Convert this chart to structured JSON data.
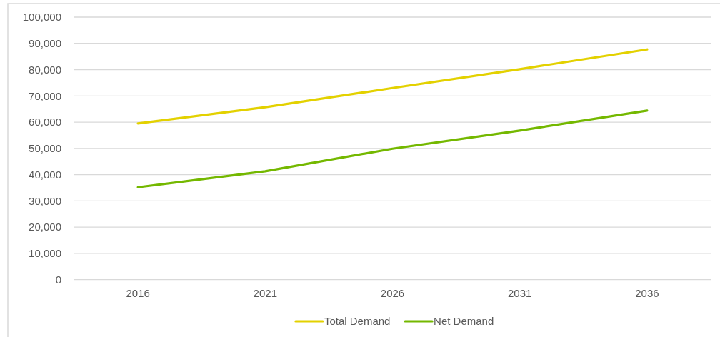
{
  "chart_data": {
    "type": "line",
    "categories": [
      "2016",
      "2021",
      "2026",
      "2031",
      "2036"
    ],
    "series": [
      {
        "name": "Total Demand",
        "color": "#e3d100",
        "values": [
          59500,
          65700,
          73000,
          80200,
          87700
        ]
      },
      {
        "name": "Net Demand",
        "color": "#74b800",
        "values": [
          35200,
          41300,
          49900,
          56800,
          64400
        ]
      }
    ],
    "ylim": [
      0,
      100000
    ],
    "yticks": [
      {
        "value": 0,
        "label": "0"
      },
      {
        "value": 10000,
        "label": "10,000"
      },
      {
        "value": 20000,
        "label": "20,000"
      },
      {
        "value": 30000,
        "label": "30,000"
      },
      {
        "value": 40000,
        "label": "40,000"
      },
      {
        "value": 50000,
        "label": "50,000"
      },
      {
        "value": 60000,
        "label": "60,000"
      },
      {
        "value": 70000,
        "label": "70,000"
      },
      {
        "value": 80000,
        "label": "80,000"
      },
      {
        "value": 90000,
        "label": "90,000"
      },
      {
        "value": 100000,
        "label": "100,000"
      }
    ],
    "grid": "y",
    "legend": "bottom",
    "marker": "none",
    "line_style": "solid"
  }
}
